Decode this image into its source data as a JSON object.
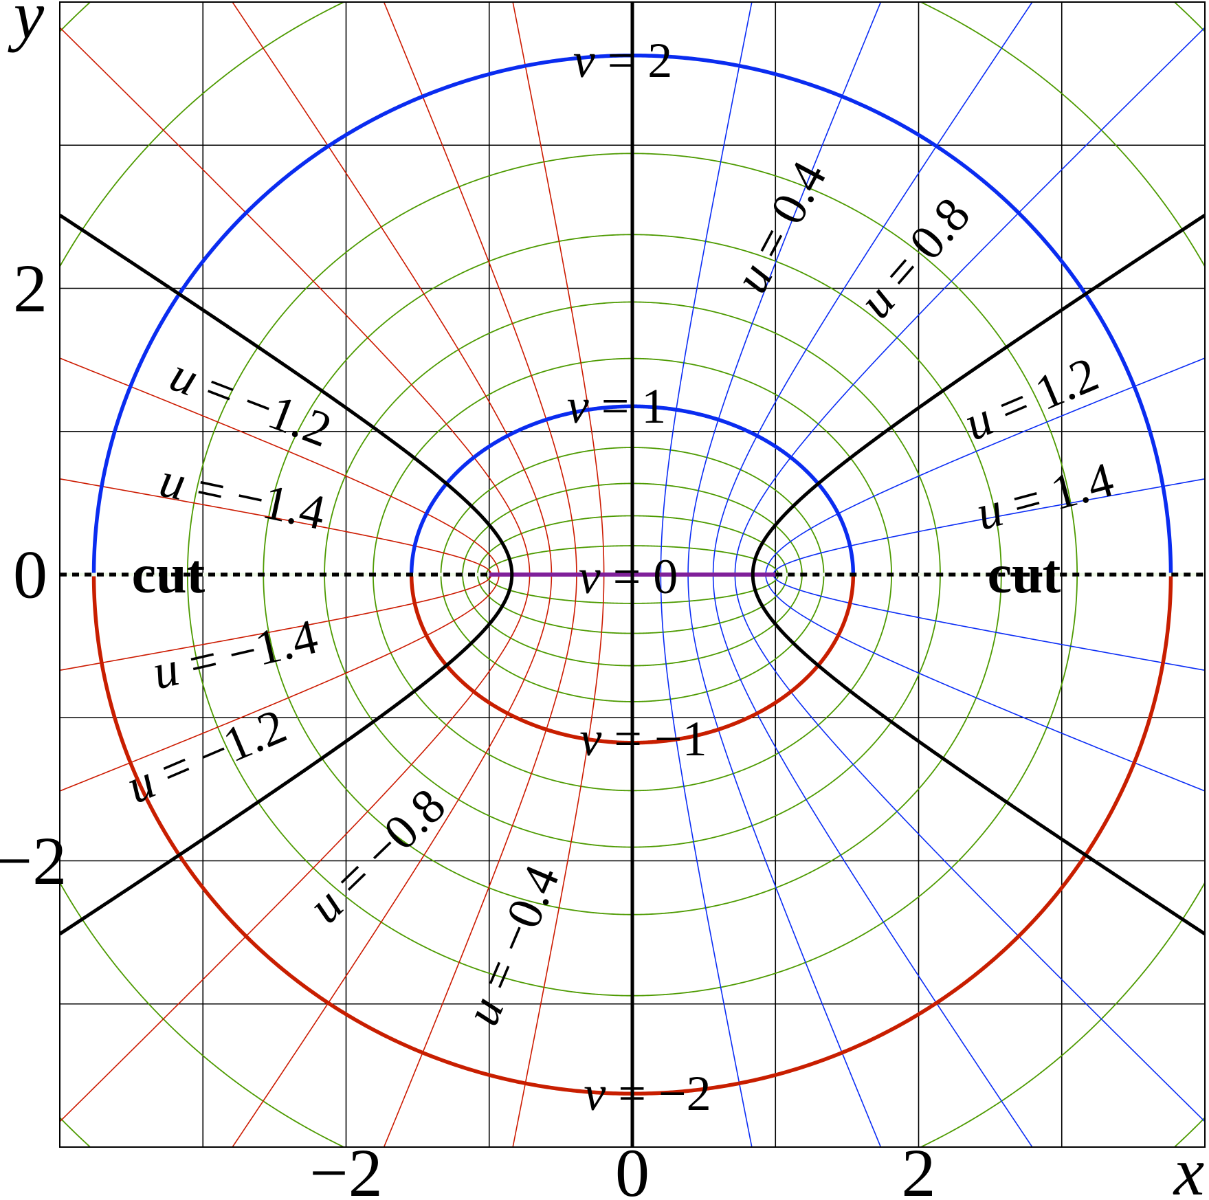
{
  "axes": {
    "xlabel": "x",
    "ylabel": "y",
    "xlim": [
      -4,
      4
    ],
    "ylim": [
      -4,
      4
    ],
    "grid": true,
    "grid_step": 1,
    "xticks": [
      {
        "value": -2,
        "label": "−2"
      },
      {
        "value": 0,
        "label": "0"
      },
      {
        "value": 2,
        "label": "2"
      }
    ],
    "yticks": [
      {
        "value": 2,
        "label": "2"
      },
      {
        "value": 0,
        "label": "0"
      },
      {
        "value": -2,
        "label": "−2"
      }
    ]
  },
  "coordinates": {
    "system": "elliptic: x = cosh v · sin u, y = sinh v · cos u",
    "foci": [
      -1,
      1
    ],
    "u_thin": [
      -1.4,
      -1.2,
      -0.8,
      -0.6,
      -0.4,
      -0.2,
      0.2,
      0.4,
      0.6,
      0.8,
      1.2,
      1.4
    ],
    "u_thick": [
      0,
      1,
      -1
    ],
    "v_thin": [
      0.2,
      0.4,
      0.6,
      0.8,
      1.2,
      1.4,
      1.6,
      1.8,
      2.2,
      2.4,
      2.6,
      2.8,
      3.0
    ],
    "v_thick_positive": [
      1,
      2
    ],
    "v_thick_negative": [
      -1,
      -2
    ],
    "v_zero_segment": 0
  },
  "colors": {
    "u_positive": "#0a2cf5",
    "u_negative": "#cc1a00",
    "u_thick": "#000000",
    "v_thin": "#4d9a00",
    "v_positive_thick": "#0a2cf0",
    "v_negative_thick": "#c81e00",
    "v_zero": "#80209a",
    "grid": "#000000",
    "cut": "#000000"
  },
  "labels": {
    "v2": {
      "var": "v",
      "rest": " = 2"
    },
    "v1": {
      "var": "v",
      "rest": " = 1"
    },
    "v0": {
      "var": "v",
      "rest": " = 0"
    },
    "vm1": {
      "var": "v",
      "rest": " = −1"
    },
    "vm2": {
      "var": "v",
      "rest": " = −2"
    },
    "u04": {
      "var": "u",
      "rest": " = 0.4"
    },
    "u08": {
      "var": "u",
      "rest": " = 0.8"
    },
    "u12": {
      "var": "u",
      "rest": " = 1.2"
    },
    "u14": {
      "var": "u",
      "rest": " = 1.4"
    },
    "um12_upper": {
      "var": "u",
      "rest": " = −1.2"
    },
    "um14_upper": {
      "var": "u",
      "rest": " = −1.4"
    },
    "um14_lower": {
      "var": "u",
      "rest": " = −1.4"
    },
    "um12_lower": {
      "var": "u",
      "rest": " = −1.2"
    },
    "um08": {
      "var": "u",
      "rest": " = −0.8"
    },
    "um04": {
      "var": "u",
      "rest": " = −0.4"
    }
  },
  "cut_label": "cut"
}
